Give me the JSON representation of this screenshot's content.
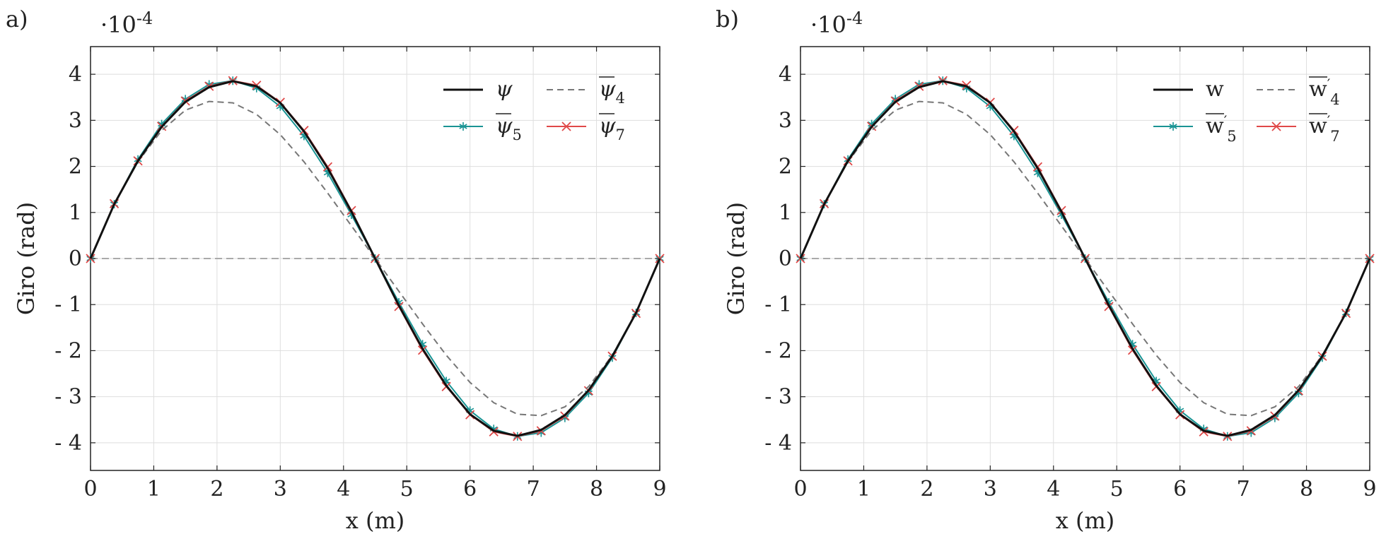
{
  "chart_data": [
    {
      "type": "line",
      "panel_label": "a)",
      "scale_label": "·10",
      "scale_exponent": "-4",
      "xlabel": "x (m)",
      "ylabel": "Giro (rad)",
      "xlim": [
        0,
        9
      ],
      "ylim": [
        -4.6,
        4.6
      ],
      "xticks": [
        0,
        1,
        2,
        3,
        4,
        5,
        6,
        7,
        8,
        9
      ],
      "xtick_labels": [
        "0",
        "1",
        "2",
        "3",
        "4",
        "5",
        "6",
        "7",
        "8",
        "9"
      ],
      "yticks": [
        -4,
        -3,
        -2,
        -1,
        0,
        1,
        2,
        3,
        4
      ],
      "ytick_labels": [
        "- 4",
        "- 3",
        "- 2",
        "- 1",
        "0",
        "1",
        "2",
        "3",
        "4"
      ],
      "grid": true,
      "legend_position": "top-right",
      "legend_columns": 2,
      "reference_line": {
        "y": 0,
        "color": "#aaaaaa",
        "style": "dashed"
      },
      "series": [
        {
          "name": "ψ",
          "name_sub": "",
          "overline": false,
          "color": "#111111",
          "style": "solid",
          "width": 3,
          "marker": "none",
          "x": [
            0,
            0.375,
            0.75,
            1.125,
            1.5,
            1.875,
            2.25,
            2.625,
            3,
            3.375,
            3.75,
            4.125,
            4.5,
            4.875,
            5.25,
            5.625,
            6,
            6.375,
            6.75,
            7.125,
            7.5,
            7.875,
            8.25,
            8.625,
            9
          ],
          "y": [
            0,
            1.18,
            2.12,
            2.86,
            3.4,
            3.72,
            3.85,
            3.74,
            3.38,
            2.76,
            1.96,
            1.02,
            0,
            -1.02,
            -1.96,
            -2.76,
            -3.38,
            -3.74,
            -3.85,
            -3.72,
            -3.4,
            -2.86,
            -2.12,
            -1.18,
            0
          ]
        },
        {
          "name": "ψ",
          "name_sub": "4",
          "overline": true,
          "color": "#777777",
          "style": "dashed",
          "width": 2,
          "marker": "none",
          "x": [
            0,
            0.375,
            0.75,
            1.125,
            1.5,
            1.875,
            2.25,
            2.625,
            3,
            3.375,
            3.75,
            4.125,
            4.5,
            4.875,
            5.25,
            5.625,
            6,
            6.375,
            6.75,
            7.125,
            7.5,
            7.875,
            8.25,
            8.625,
            9
          ],
          "y": [
            0,
            1.18,
            2.1,
            2.78,
            3.22,
            3.41,
            3.38,
            3.13,
            2.69,
            2.1,
            1.42,
            0.71,
            0,
            -0.71,
            -1.42,
            -2.1,
            -2.69,
            -3.13,
            -3.38,
            -3.41,
            -3.22,
            -2.78,
            -2.1,
            -1.18,
            0
          ]
        },
        {
          "name": "ψ",
          "name_sub": "5",
          "overline": true,
          "color": "#1a9494",
          "style": "solid",
          "width": 2,
          "marker": "star",
          "x": [
            0,
            0.375,
            0.75,
            1.125,
            1.5,
            1.875,
            2.25,
            2.625,
            3,
            3.375,
            3.75,
            4.125,
            4.5,
            4.875,
            5.25,
            5.625,
            6,
            6.375,
            6.75,
            7.125,
            7.5,
            7.875,
            8.25,
            8.625,
            9
          ],
          "y": [
            0,
            1.18,
            2.15,
            2.92,
            3.46,
            3.78,
            3.86,
            3.7,
            3.3,
            2.66,
            1.86,
            0.95,
            0,
            -0.95,
            -1.86,
            -2.66,
            -3.3,
            -3.7,
            -3.86,
            -3.78,
            -3.46,
            -2.92,
            -2.15,
            -1.18,
            0
          ]
        },
        {
          "name": "ψ",
          "name_sub": "7",
          "overline": true,
          "color": "#e04848",
          "style": "solid",
          "width": 2,
          "marker": "x",
          "x": [
            0,
            0.375,
            0.75,
            1.125,
            1.5,
            1.875,
            2.25,
            2.625,
            3,
            3.375,
            3.75,
            4.125,
            4.5,
            4.875,
            5.25,
            5.625,
            6,
            6.375,
            6.75,
            7.125,
            7.5,
            7.875,
            8.25,
            8.625,
            9
          ],
          "y": [
            0,
            1.19,
            2.12,
            2.87,
            3.42,
            3.74,
            3.86,
            3.76,
            3.39,
            2.78,
            1.99,
            1.04,
            0,
            -1.04,
            -1.99,
            -2.78,
            -3.39,
            -3.76,
            -3.86,
            -3.74,
            -3.42,
            -2.87,
            -2.12,
            -1.19,
            0
          ]
        }
      ]
    },
    {
      "type": "line",
      "panel_label": "b)",
      "scale_label": "·10",
      "scale_exponent": "-4",
      "xlabel": "x (m)",
      "ylabel": "Giro (rad)",
      "xlim": [
        0,
        9
      ],
      "ylim": [
        -4.6,
        4.6
      ],
      "xticks": [
        0,
        1,
        2,
        3,
        4,
        5,
        6,
        7,
        8,
        9
      ],
      "xtick_labels": [
        "0",
        "1",
        "2",
        "3",
        "4",
        "5",
        "6",
        "7",
        "8",
        "9"
      ],
      "yticks": [
        -4,
        -3,
        -2,
        -1,
        0,
        1,
        2,
        3,
        4
      ],
      "ytick_labels": [
        "- 4",
        "- 3",
        "- 2",
        "- 1",
        "0",
        "1",
        "2",
        "3",
        "4"
      ],
      "grid": true,
      "legend_position": "top-right",
      "legend_columns": 2,
      "reference_line": {
        "y": 0,
        "color": "#aaaaaa",
        "style": "dashed"
      },
      "series": [
        {
          "name": "w",
          "name_sub": "",
          "overline": false,
          "prime": false,
          "color": "#111111",
          "style": "solid",
          "width": 3,
          "marker": "none",
          "x": [
            0,
            0.375,
            0.75,
            1.125,
            1.5,
            1.875,
            2.25,
            2.625,
            3,
            3.375,
            3.75,
            4.125,
            4.5,
            4.875,
            5.25,
            5.625,
            6,
            6.375,
            6.75,
            7.125,
            7.5,
            7.875,
            8.25,
            8.625,
            9
          ],
          "y": [
            0,
            1.18,
            2.12,
            2.86,
            3.4,
            3.72,
            3.85,
            3.74,
            3.38,
            2.76,
            1.96,
            1.02,
            0,
            -1.02,
            -1.96,
            -2.76,
            -3.38,
            -3.74,
            -3.85,
            -3.72,
            -3.4,
            -2.86,
            -2.12,
            -1.18,
            0
          ]
        },
        {
          "name": "w",
          "name_sub": "4",
          "overline": true,
          "prime": true,
          "color": "#777777",
          "style": "dashed",
          "width": 2,
          "marker": "none",
          "x": [
            0,
            0.375,
            0.75,
            1.125,
            1.5,
            1.875,
            2.25,
            2.625,
            3,
            3.375,
            3.75,
            4.125,
            4.5,
            4.875,
            5.25,
            5.625,
            6,
            6.375,
            6.75,
            7.125,
            7.5,
            7.875,
            8.25,
            8.625,
            9
          ],
          "y": [
            0,
            1.18,
            2.1,
            2.78,
            3.22,
            3.41,
            3.38,
            3.13,
            2.69,
            2.1,
            1.42,
            0.71,
            0,
            -0.71,
            -1.42,
            -2.1,
            -2.69,
            -3.13,
            -3.38,
            -3.41,
            -3.22,
            -2.78,
            -2.1,
            -1.18,
            0
          ]
        },
        {
          "name": "w",
          "name_sub": "5",
          "overline": true,
          "prime": true,
          "color": "#1a9494",
          "style": "solid",
          "width": 2,
          "marker": "star",
          "x": [
            0,
            0.375,
            0.75,
            1.125,
            1.5,
            1.875,
            2.25,
            2.625,
            3,
            3.375,
            3.75,
            4.125,
            4.5,
            4.875,
            5.25,
            5.625,
            6,
            6.375,
            6.75,
            7.125,
            7.5,
            7.875,
            8.25,
            8.625,
            9
          ],
          "y": [
            0,
            1.18,
            2.15,
            2.92,
            3.46,
            3.78,
            3.86,
            3.7,
            3.3,
            2.66,
            1.86,
            0.95,
            0,
            -0.95,
            -1.86,
            -2.66,
            -3.3,
            -3.7,
            -3.86,
            -3.78,
            -3.46,
            -2.92,
            -2.15,
            -1.18,
            0
          ]
        },
        {
          "name": "w",
          "name_sub": "7",
          "overline": true,
          "prime": true,
          "color": "#e04848",
          "style": "solid",
          "width": 2,
          "marker": "x",
          "x": [
            0,
            0.375,
            0.75,
            1.125,
            1.5,
            1.875,
            2.25,
            2.625,
            3,
            3.375,
            3.75,
            4.125,
            4.5,
            4.875,
            5.25,
            5.625,
            6,
            6.375,
            6.75,
            7.125,
            7.5,
            7.875,
            8.25,
            8.625,
            9
          ],
          "y": [
            0,
            1.19,
            2.12,
            2.87,
            3.42,
            3.74,
            3.86,
            3.76,
            3.39,
            2.78,
            1.99,
            1.04,
            0,
            -1.04,
            -1.99,
            -2.78,
            -3.39,
            -3.76,
            -3.86,
            -3.74,
            -3.42,
            -2.87,
            -2.12,
            -1.19,
            0
          ]
        }
      ]
    }
  ]
}
